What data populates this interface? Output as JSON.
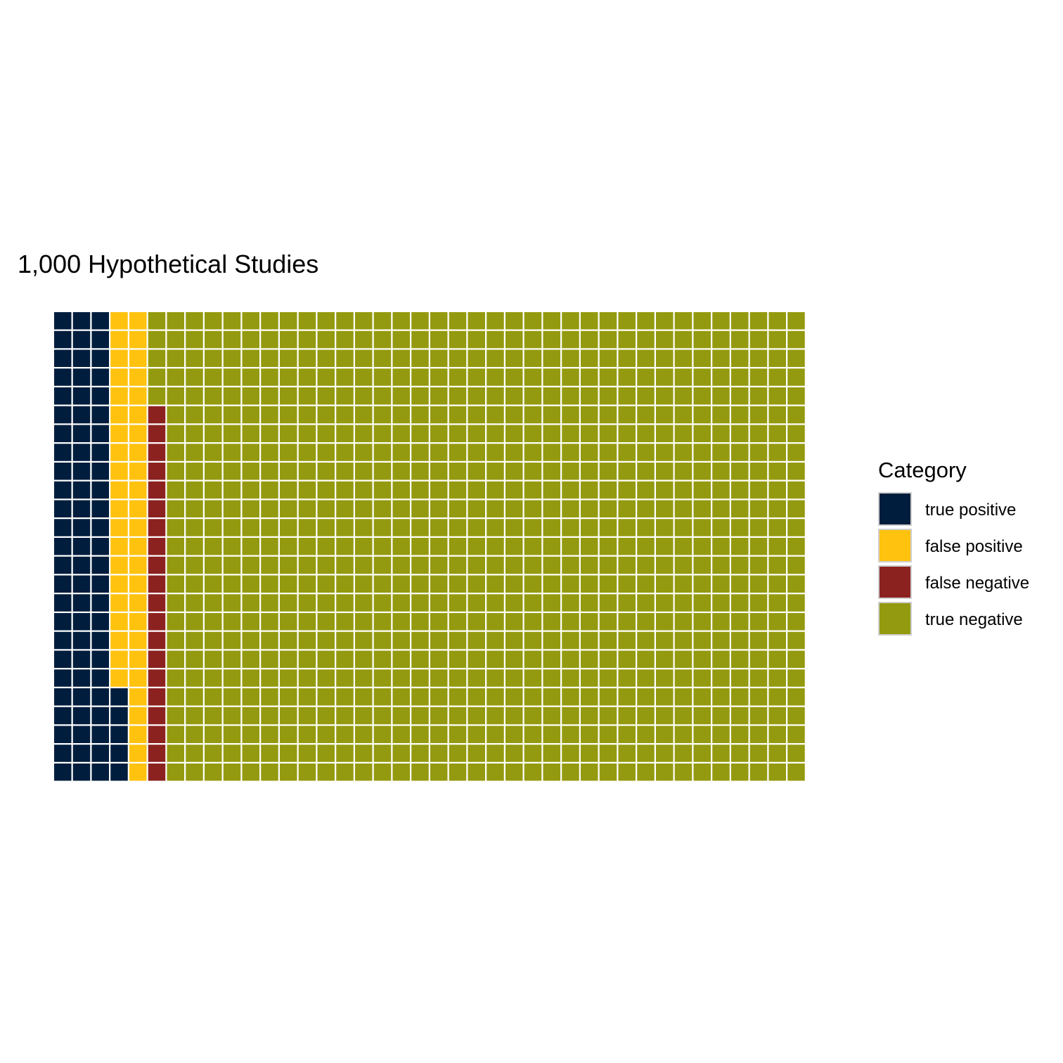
{
  "chart_data": {
    "type": "waffle",
    "title": "1,000 Hypothetical Studies",
    "grid": {
      "columns": 40,
      "rows": 25,
      "fill_order": "column-major, bottom-to-top"
    },
    "legend": {
      "title": "Category",
      "placement": "right"
    },
    "categories": [
      {
        "name": "true positive",
        "count": 80,
        "color": "#001d3d"
      },
      {
        "name": "false positive",
        "count": 45,
        "color": "#ffc20e"
      },
      {
        "name": "false negative",
        "count": 20,
        "color": "#8b2220"
      },
      {
        "name": "true negative",
        "count": 855,
        "color": "#949a0f"
      }
    ],
    "tile_border_color": "#cfcfcf"
  }
}
